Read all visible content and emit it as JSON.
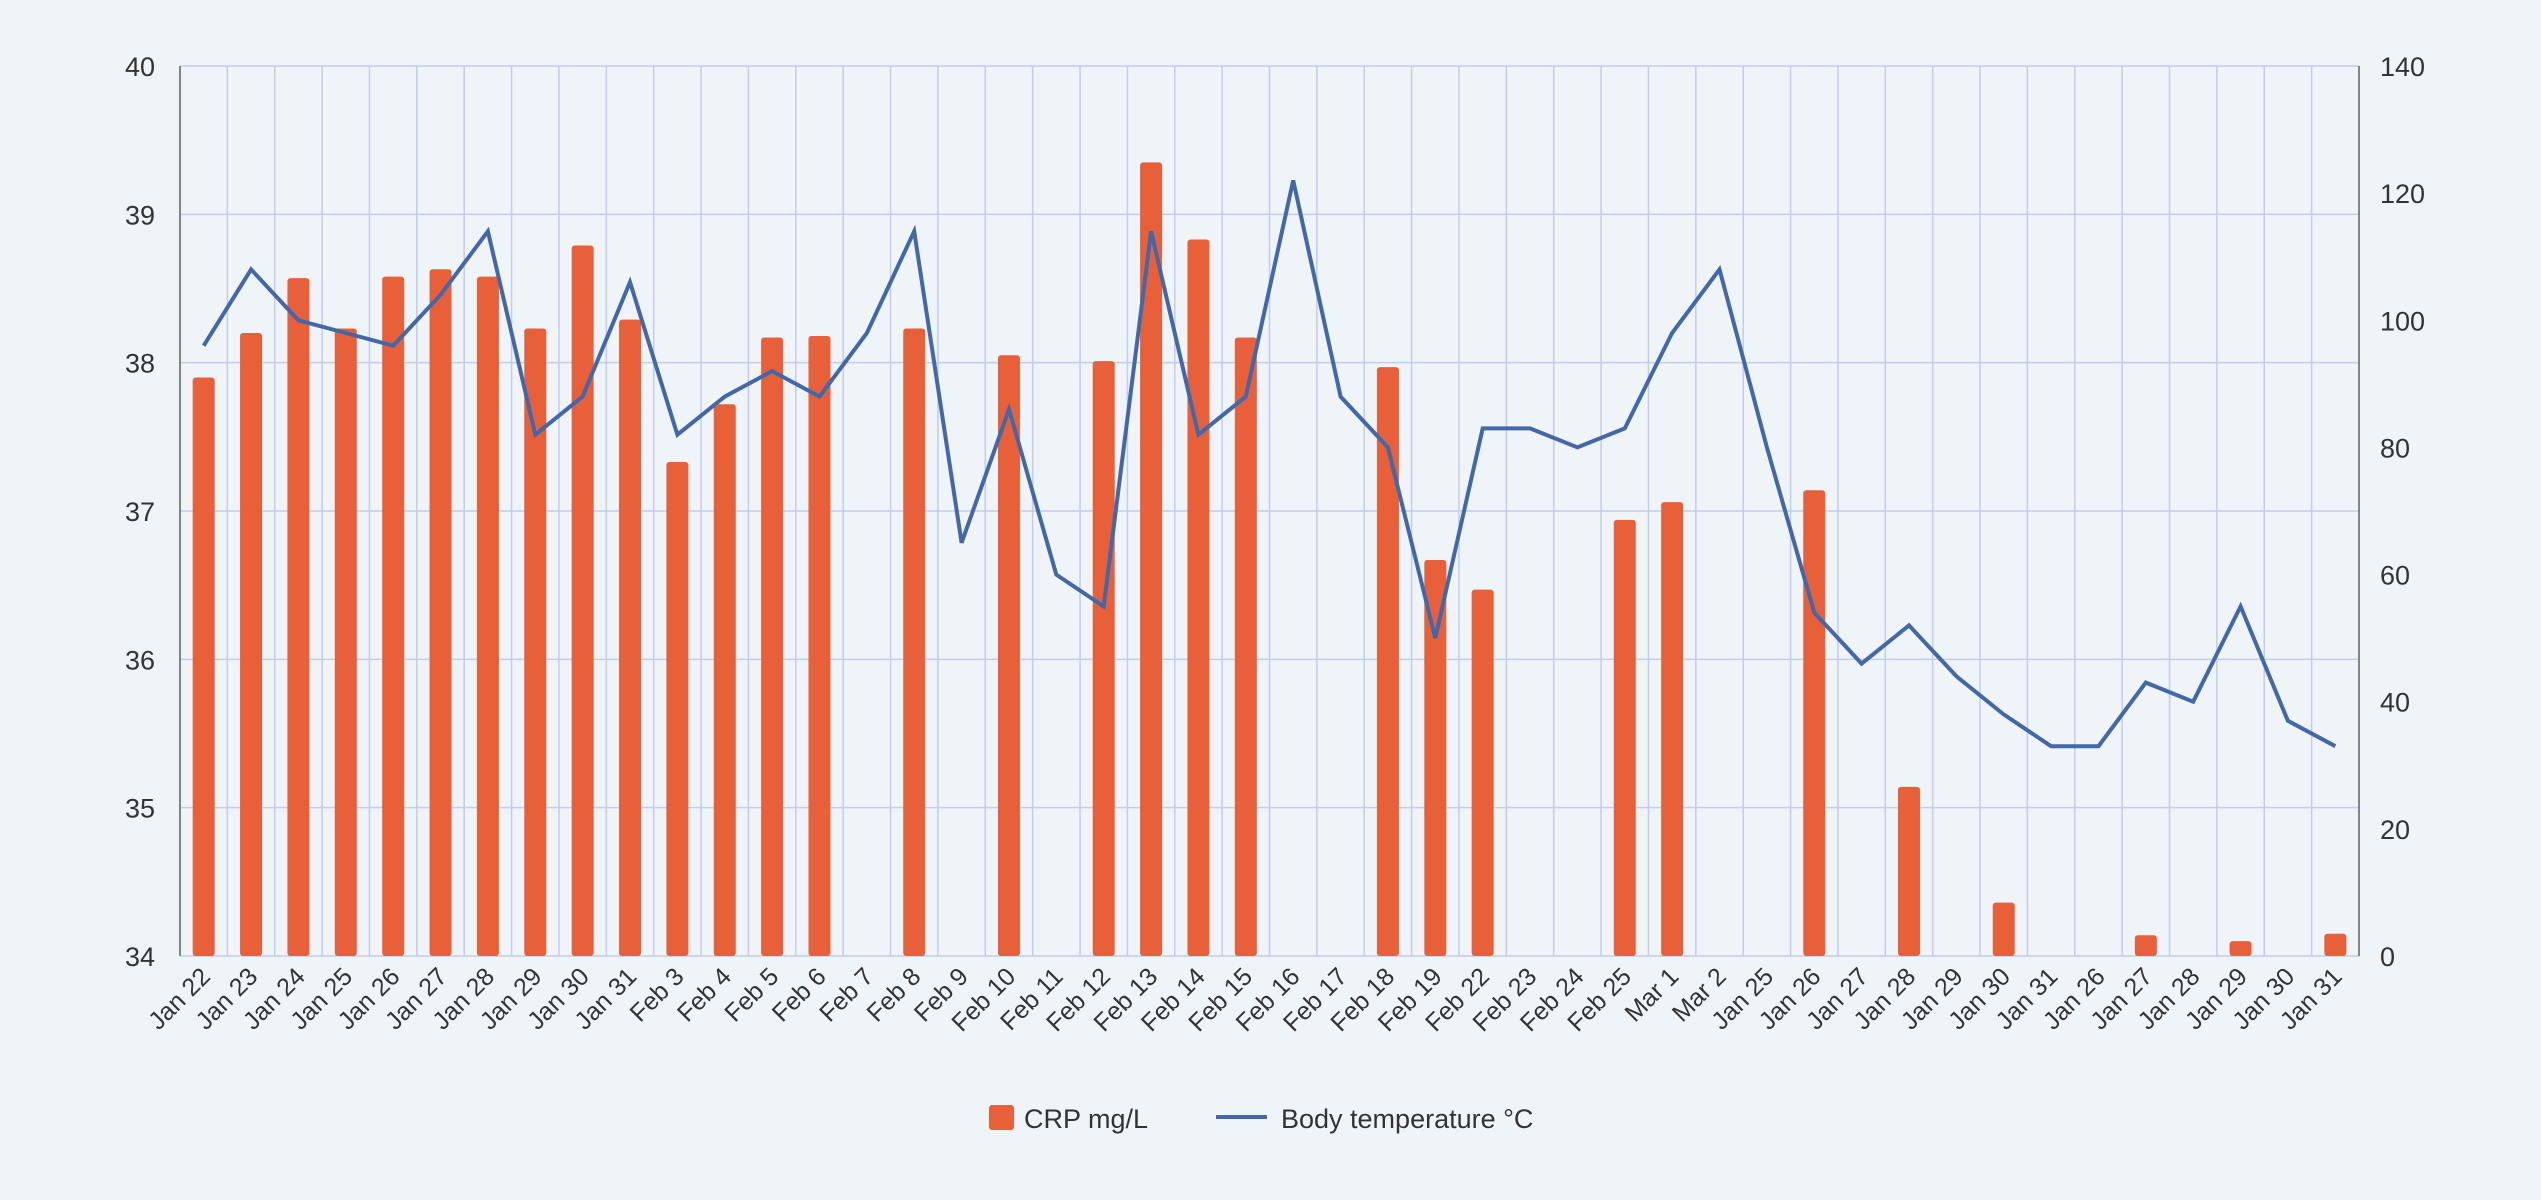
{
  "chart_data": {
    "type": "bar",
    "categories": [
      "Jan 22",
      "Jan 23",
      "Jan 24",
      "Jan 25",
      "Jan 26",
      "Jan 27",
      "Jan 28",
      "Jan 29",
      "Jan 30",
      "Jan 31",
      "Feb 3",
      "Feb 4",
      "Feb 5",
      "Feb 6",
      "Feb 7",
      "Feb 8",
      "Feb 9",
      "Feb 10",
      "Feb 11",
      "Feb 12",
      "Feb 13",
      "Feb 14",
      "Feb 15",
      "Feb 16",
      "Feb 17",
      "Feb 18",
      "Feb 19",
      "Feb 22",
      "Feb 23",
      "Feb 24",
      "Feb 25",
      "Mar 1",
      "Mar  2",
      "Jan 25",
      "Jan 26",
      "Jan 27",
      "Jan 28",
      "Jan 29",
      "Jan 30",
      "Jan 31",
      "Jan 26",
      "Jan 27",
      "Jan 28",
      "Jan 29",
      "Jan 30",
      "Jan 31"
    ],
    "series": [
      {
        "name": "CRP mg/L",
        "type": "bar",
        "axis": "left",
        "color": "#e8603a",
        "values": [
          37.9,
          38.2,
          38.57,
          38.23,
          38.58,
          38.63,
          38.58,
          38.23,
          38.79,
          38.29,
          37.33,
          37.72,
          38.17,
          38.18,
          null,
          38.23,
          null,
          38.05,
          null,
          38.01,
          39.35,
          38.83,
          38.17,
          null,
          null,
          37.97,
          36.67,
          36.47,
          null,
          null,
          36.94,
          37.06,
          null,
          null,
          37.14,
          null,
          35.14,
          null,
          34.36,
          null,
          null,
          34.14,
          null,
          34.1,
          null,
          34.15
        ]
      },
      {
        "name": "Body temperature °C",
        "type": "line",
        "axis": "right",
        "color": "#4467a7",
        "values": [
          96,
          108,
          100,
          98,
          96,
          104,
          114,
          82,
          88,
          106,
          82,
          88,
          92,
          88,
          98,
          114,
          65,
          86,
          60,
          55,
          114,
          82,
          88,
          122,
          88,
          80,
          50,
          83,
          83,
          80,
          83,
          98,
          108,
          80,
          54,
          46,
          52,
          44,
          38,
          33,
          33,
          43,
          40,
          55,
          37,
          33
        ]
      }
    ],
    "ylim_left": [
      34,
      40
    ],
    "yticks_left": [
      "34",
      "35",
      "36",
      "37",
      "38",
      "39",
      "40"
    ],
    "ylim_right": [
      0,
      140
    ],
    "yticks_right": [
      "0",
      "20",
      "40",
      "60",
      "80",
      "100",
      "120",
      "140"
    ],
    "grid": true,
    "legend_position": "bottom-center"
  },
  "legend": {
    "bar_label": "CRP mg/L",
    "line_label": "Body temperature °C"
  }
}
